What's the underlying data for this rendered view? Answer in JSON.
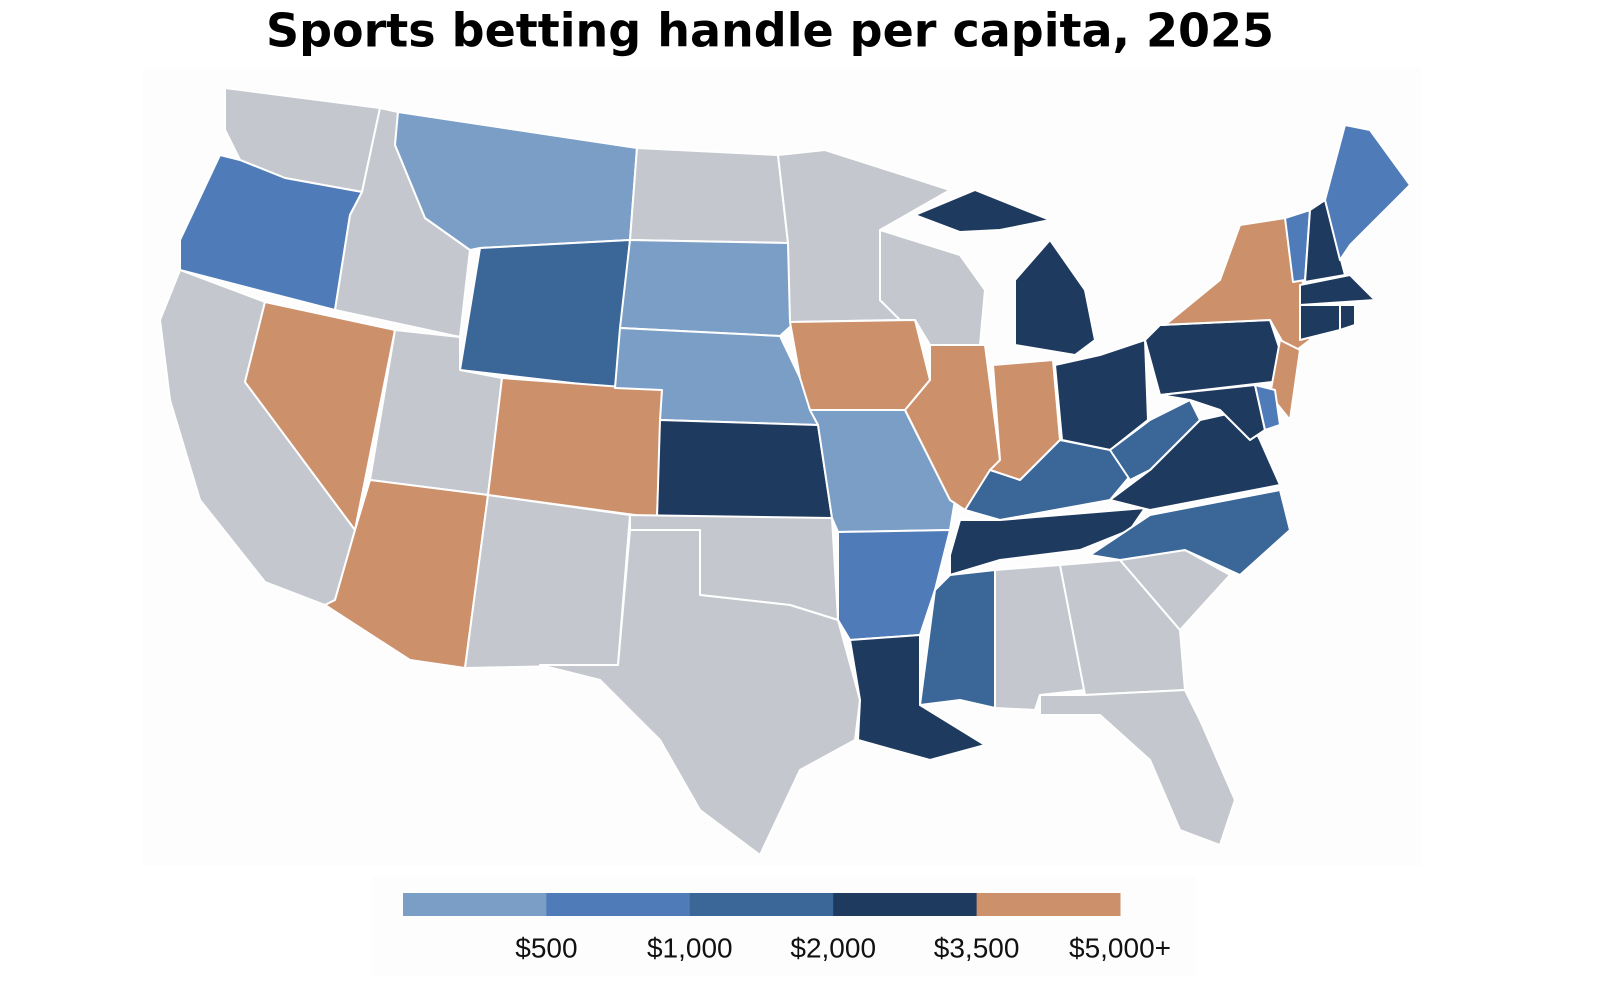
{
  "title": "Sports betting handle per capita, 2025",
  "legend": {
    "colors": [
      "#7b9ec6",
      "#4f7bb8",
      "#3a6698",
      "#1f3a5f",
      "#cc906b"
    ],
    "labels": [
      "$500",
      "$1,000",
      "$2,000",
      "$3,500",
      "$5,000+"
    ]
  },
  "no_data_color": "#c4c8ce"
}
